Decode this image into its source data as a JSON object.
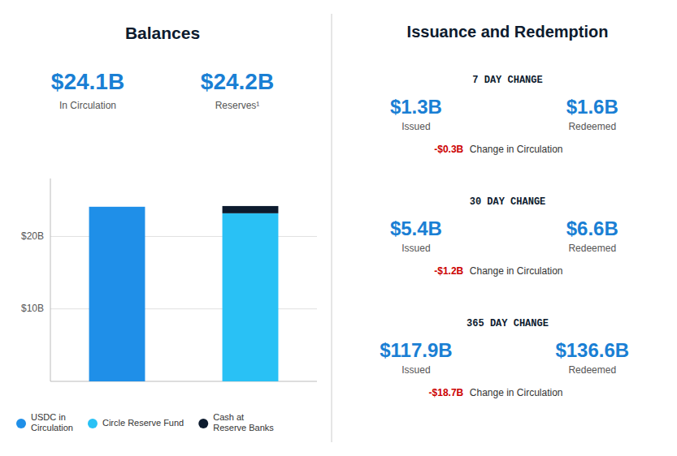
{
  "chart_data": {
    "type": "bar",
    "title": "Balances",
    "stacked": true,
    "grid": true,
    "categories": [
      null,
      null
    ],
    "series": [
      {
        "name": "USDC in\nCirculation",
        "color": "#1f8fe8",
        "values": [
          24.1,
          null
        ]
      },
      {
        "name": "Circle Reserve Fund",
        "color": "#29c1f5",
        "values": [
          null,
          23.2
        ]
      },
      {
        "name": "Cash at\nReserve Banks",
        "color": "#0d1b2e",
        "values": [
          null,
          1.0
        ]
      }
    ],
    "ylim": [
      0,
      28
    ],
    "yticks": [
      {
        "value": 10,
        "label": "$10B"
      },
      {
        "value": 20,
        "label": "$20B"
      }
    ],
    "annotations": [
      "$24.1B",
      "In Circulation",
      "$24.2B",
      "Reserves¹",
      "Issuance and Redemption",
      "7 DAY CHANGE",
      "$1.3B",
      "Issued",
      "$1.6B",
      "Redeemed",
      "-$0.3B",
      " Change in Circulation",
      "30 DAY CHANGE",
      "$5.4B",
      "Issued",
      "$6.6B",
      "Redeemed",
      "-$1.2B",
      " Change in Circulation",
      "365 DAY CHANGE",
      "$117.9B",
      "Issued",
      "$136.6B",
      "Redeemed",
      "-$18.7B",
      " Change in Circulation"
    ]
  }
}
